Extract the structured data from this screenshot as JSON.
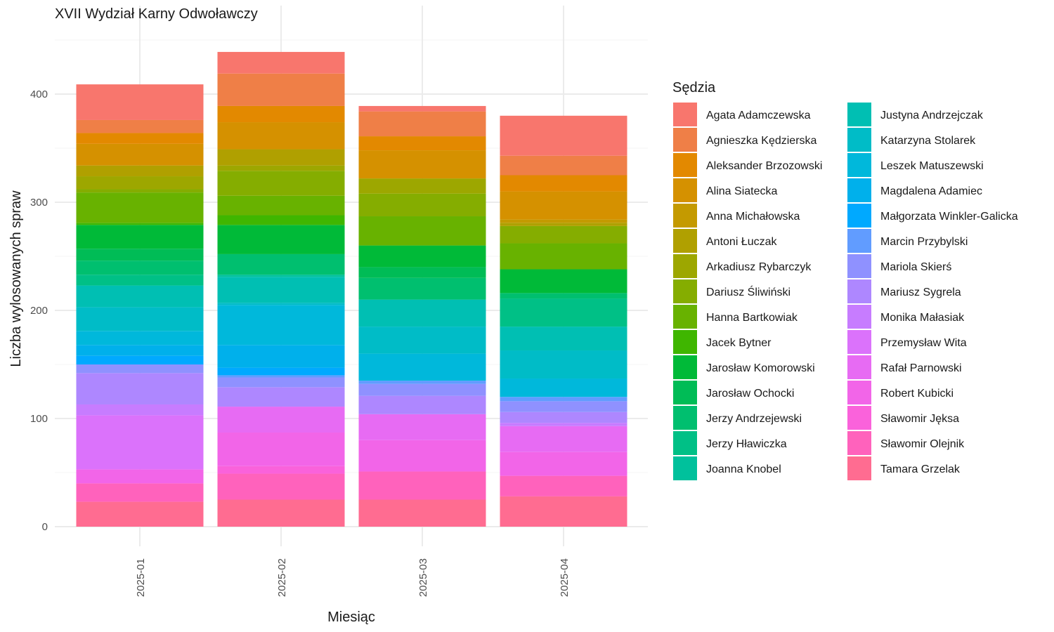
{
  "chart_data": {
    "type": "bar",
    "stacked": true,
    "title": "XVII Wydział Karny Odwoławczy",
    "xlabel": "Miesiąc",
    "ylabel": "Liczba wylosowanych spraw",
    "legend_title": "Sędzia",
    "legend_position": "right",
    "grid": true,
    "ylim": [
      0,
      460
    ],
    "yticks": [
      0,
      100,
      200,
      300,
      400
    ],
    "categories": [
      "2025-01",
      "2025-02",
      "2025-03",
      "2025-04"
    ],
    "series": [
      {
        "name": "Agata Adamczewska",
        "color": "#F8766D",
        "values": [
          33,
          20,
          5,
          37
        ]
      },
      {
        "name": "Agnieszka Kędzierska",
        "color": "#EF7F47",
        "values": [
          12,
          30,
          23,
          18
        ]
      },
      {
        "name": "Aleksander Brzozowski",
        "color": "#E38900",
        "values": [
          10,
          15,
          13,
          15
        ]
      },
      {
        "name": "Alina Siatecka",
        "color": "#D59100",
        "values": [
          20,
          25,
          26,
          26
        ]
      },
      {
        "name": "Anna Michałowska",
        "color": "#C49A00",
        "values": [
          0,
          0,
          0,
          3
        ]
      },
      {
        "name": "Antoni Łuczak",
        "color": "#B0A000",
        "values": [
          10,
          15,
          0,
          3
        ]
      },
      {
        "name": "Arkadiusz Rybarczyk",
        "color": "#9DA700",
        "values": [
          12,
          5,
          14,
          0
        ]
      },
      {
        "name": "Dariusz Śliwiński",
        "color": "#85AD00",
        "values": [
          3,
          23,
          21,
          16
        ]
      },
      {
        "name": "Hanna Bartkowiak",
        "color": "#68B200",
        "values": [
          28,
          18,
          27,
          24
        ]
      },
      {
        "name": "Jacek Bytner",
        "color": "#3FB600",
        "values": [
          2,
          9,
          0,
          0
        ]
      },
      {
        "name": "Jarosław Komorowski",
        "color": "#00BA38",
        "values": [
          22,
          27,
          20,
          22
        ]
      },
      {
        "name": "Jarosław Ochocki",
        "color": "#00BC56",
        "values": [
          11,
          0,
          10,
          0
        ]
      },
      {
        "name": "Jerzy Andrzejewski",
        "color": "#00BF6F",
        "values": [
          13,
          19,
          20,
          5
        ]
      },
      {
        "name": "Jerzy Hławiczka",
        "color": "#00C086",
        "values": [
          10,
          0,
          0,
          26
        ]
      },
      {
        "name": "Joanna Knobel",
        "color": "#00C19C",
        "values": [
          0,
          2,
          0,
          0
        ]
      },
      {
        "name": "Justyna Andrzejczak",
        "color": "#00BFB3",
        "values": [
          20,
          24,
          25,
          22
        ]
      },
      {
        "name": "Katarzyna Stolarek",
        "color": "#00BCC7",
        "values": [
          22,
          2,
          25,
          26
        ]
      },
      {
        "name": "Leszek Matuszewski",
        "color": "#00B8DB",
        "values": [
          13,
          37,
          25,
          17
        ]
      },
      {
        "name": "Magdalena Adamiec",
        "color": "#00B0EB",
        "values": [
          10,
          21,
          0,
          0
        ]
      },
      {
        "name": "Małgorzata Winkler-Galicka",
        "color": "#00A9FF",
        "values": [
          8,
          7,
          0,
          0
        ]
      },
      {
        "name": "Marcin Przybylski",
        "color": "#619CFF",
        "values": [
          0,
          2,
          3,
          4
        ]
      },
      {
        "name": "Mariola Skierś",
        "color": "#8F91FF",
        "values": [
          8,
          9,
          11,
          10
        ]
      },
      {
        "name": "Mariusz Sygrela",
        "color": "#AE87FF",
        "values": [
          29,
          18,
          17,
          10
        ]
      },
      {
        "name": "Monika Małasiak",
        "color": "#C77CFF",
        "values": [
          10,
          0,
          0,
          3
        ]
      },
      {
        "name": "Przemysław Wita",
        "color": "#DB72FB",
        "values": [
          50,
          0,
          0,
          0
        ]
      },
      {
        "name": "Rafał Parnowski",
        "color": "#E76BF3",
        "values": [
          0,
          24,
          24,
          24
        ]
      },
      {
        "name": "Robert Kubicki",
        "color": "#F265E8",
        "values": [
          13,
          31,
          29,
          22
        ]
      },
      {
        "name": "Sławomir Jęksa",
        "color": "#FA62DB",
        "values": [
          0,
          7,
          0,
          0
        ]
      },
      {
        "name": "Sławomir Olejnik",
        "color": "#FF62BC",
        "values": [
          17,
          24,
          26,
          19
        ]
      },
      {
        "name": "Tamara Grzelak",
        "color": "#FF6C91",
        "values": [
          23,
          25,
          25,
          28
        ]
      }
    ]
  }
}
